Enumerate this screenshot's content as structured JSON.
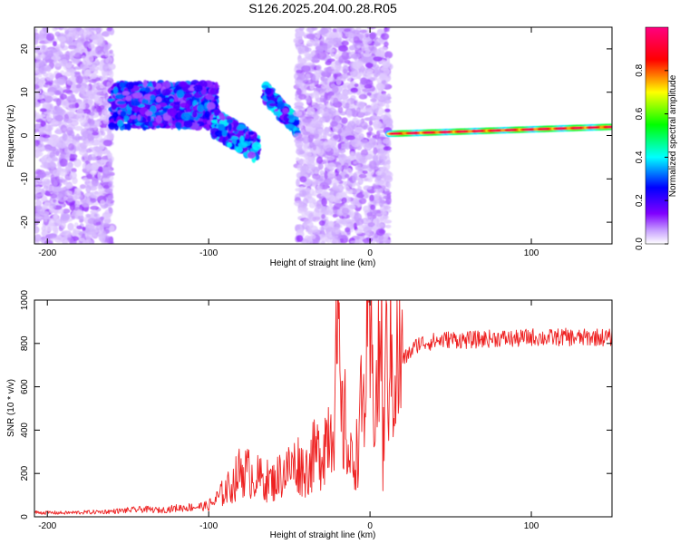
{
  "title": "S126.2025.204.00.28.R05",
  "chart_data": [
    {
      "type": "heatmap",
      "xlabel": "Height of straight line (km)",
      "ylabel": "Frequency (Hz)",
      "xlim": [
        -208,
        150
      ],
      "ylim": [
        -25,
        25
      ],
      "xticks": [
        -200,
        -100,
        0,
        100
      ],
      "yticks": [
        -20,
        -10,
        0,
        10,
        20
      ],
      "colorbar": {
        "label": "Normalized spectral amplitude",
        "range": [
          0,
          1
        ],
        "ticks": [
          0.0,
          0.2,
          0.4,
          0.6,
          0.8
        ],
        "colormap": [
          "#ffffff",
          "#8000ff",
          "#0000ff",
          "#00ffff",
          "#00ff00",
          "#ffff00",
          "#ff0000",
          "#ff0080"
        ]
      },
      "features": [
        {
          "name": "weak scatter",
          "x_range": [
            -208,
            -160
          ],
          "freq_range": [
            -25,
            25
          ],
          "amplitude": 0.12
        },
        {
          "name": "band",
          "x_range": [
            -160,
            -95
          ],
          "freq_range": [
            2,
            12
          ],
          "amplitude": 0.3
        },
        {
          "name": "drift",
          "x_range": [
            -97,
            -70
          ],
          "freq_range": [
            -6,
            4
          ],
          "amplitude": 0.35
        },
        {
          "name": "rise",
          "x_range": [
            -65,
            -45
          ],
          "freq_range": [
            2,
            11
          ],
          "amplitude": 0.35
        },
        {
          "name": "weak scatter",
          "x_range": [
            -45,
            12
          ],
          "freq_range": [
            -25,
            25
          ],
          "amplitude": 0.12
        },
        {
          "name": "carrier",
          "x_range": [
            12,
            150
          ],
          "freq_range": [
            0,
            2
          ],
          "amplitude": 0.95
        }
      ],
      "grid": false
    },
    {
      "type": "line",
      "xlabel": "Height of straight line (km)",
      "ylabel": "SNR (10 * v/v)",
      "xlim": [
        -208,
        150
      ],
      "ylim": [
        0,
        1000
      ],
      "xticks": [
        -200,
        -100,
        0,
        100
      ],
      "yticks": [
        0,
        200,
        400,
        600,
        800,
        1000
      ],
      "grid": false,
      "series": [
        {
          "color": "#ee2222",
          "x": [
            -208,
            -190,
            -170,
            -160,
            -150,
            -140,
            -130,
            -120,
            -110,
            -100,
            -95,
            -90,
            -85,
            -80,
            -75,
            -70,
            -65,
            -60,
            -55,
            -50,
            -45,
            -40,
            -35,
            -30,
            -27,
            -25,
            -22,
            -20,
            -18,
            -16,
            -15,
            -14,
            -13,
            -12,
            -10,
            -8,
            -6,
            -4,
            -2,
            0,
            2,
            4,
            6,
            7,
            8,
            9,
            10,
            12,
            15,
            18,
            20,
            25,
            30,
            35,
            40,
            45,
            50,
            60,
            70,
            80,
            90,
            100,
            110,
            120,
            130,
            140,
            150
          ],
          "y": [
            20,
            18,
            22,
            25,
            30,
            35,
            30,
            40,
            45,
            50,
            80,
            120,
            150,
            220,
            200,
            180,
            170,
            160,
            200,
            220,
            250,
            210,
            280,
            300,
            380,
            420,
            500,
            850,
            450,
            380,
            480,
            330,
            260,
            250,
            270,
            300,
            460,
            520,
            700,
            750,
            600,
            550,
            720,
            1000,
            180,
            600,
            680,
            720,
            690,
            700,
            720,
            760,
            800,
            805,
            810,
            815,
            820,
            815,
            820,
            825,
            820,
            830,
            825,
            830,
            825,
            830,
            825
          ]
        }
      ]
    }
  ]
}
